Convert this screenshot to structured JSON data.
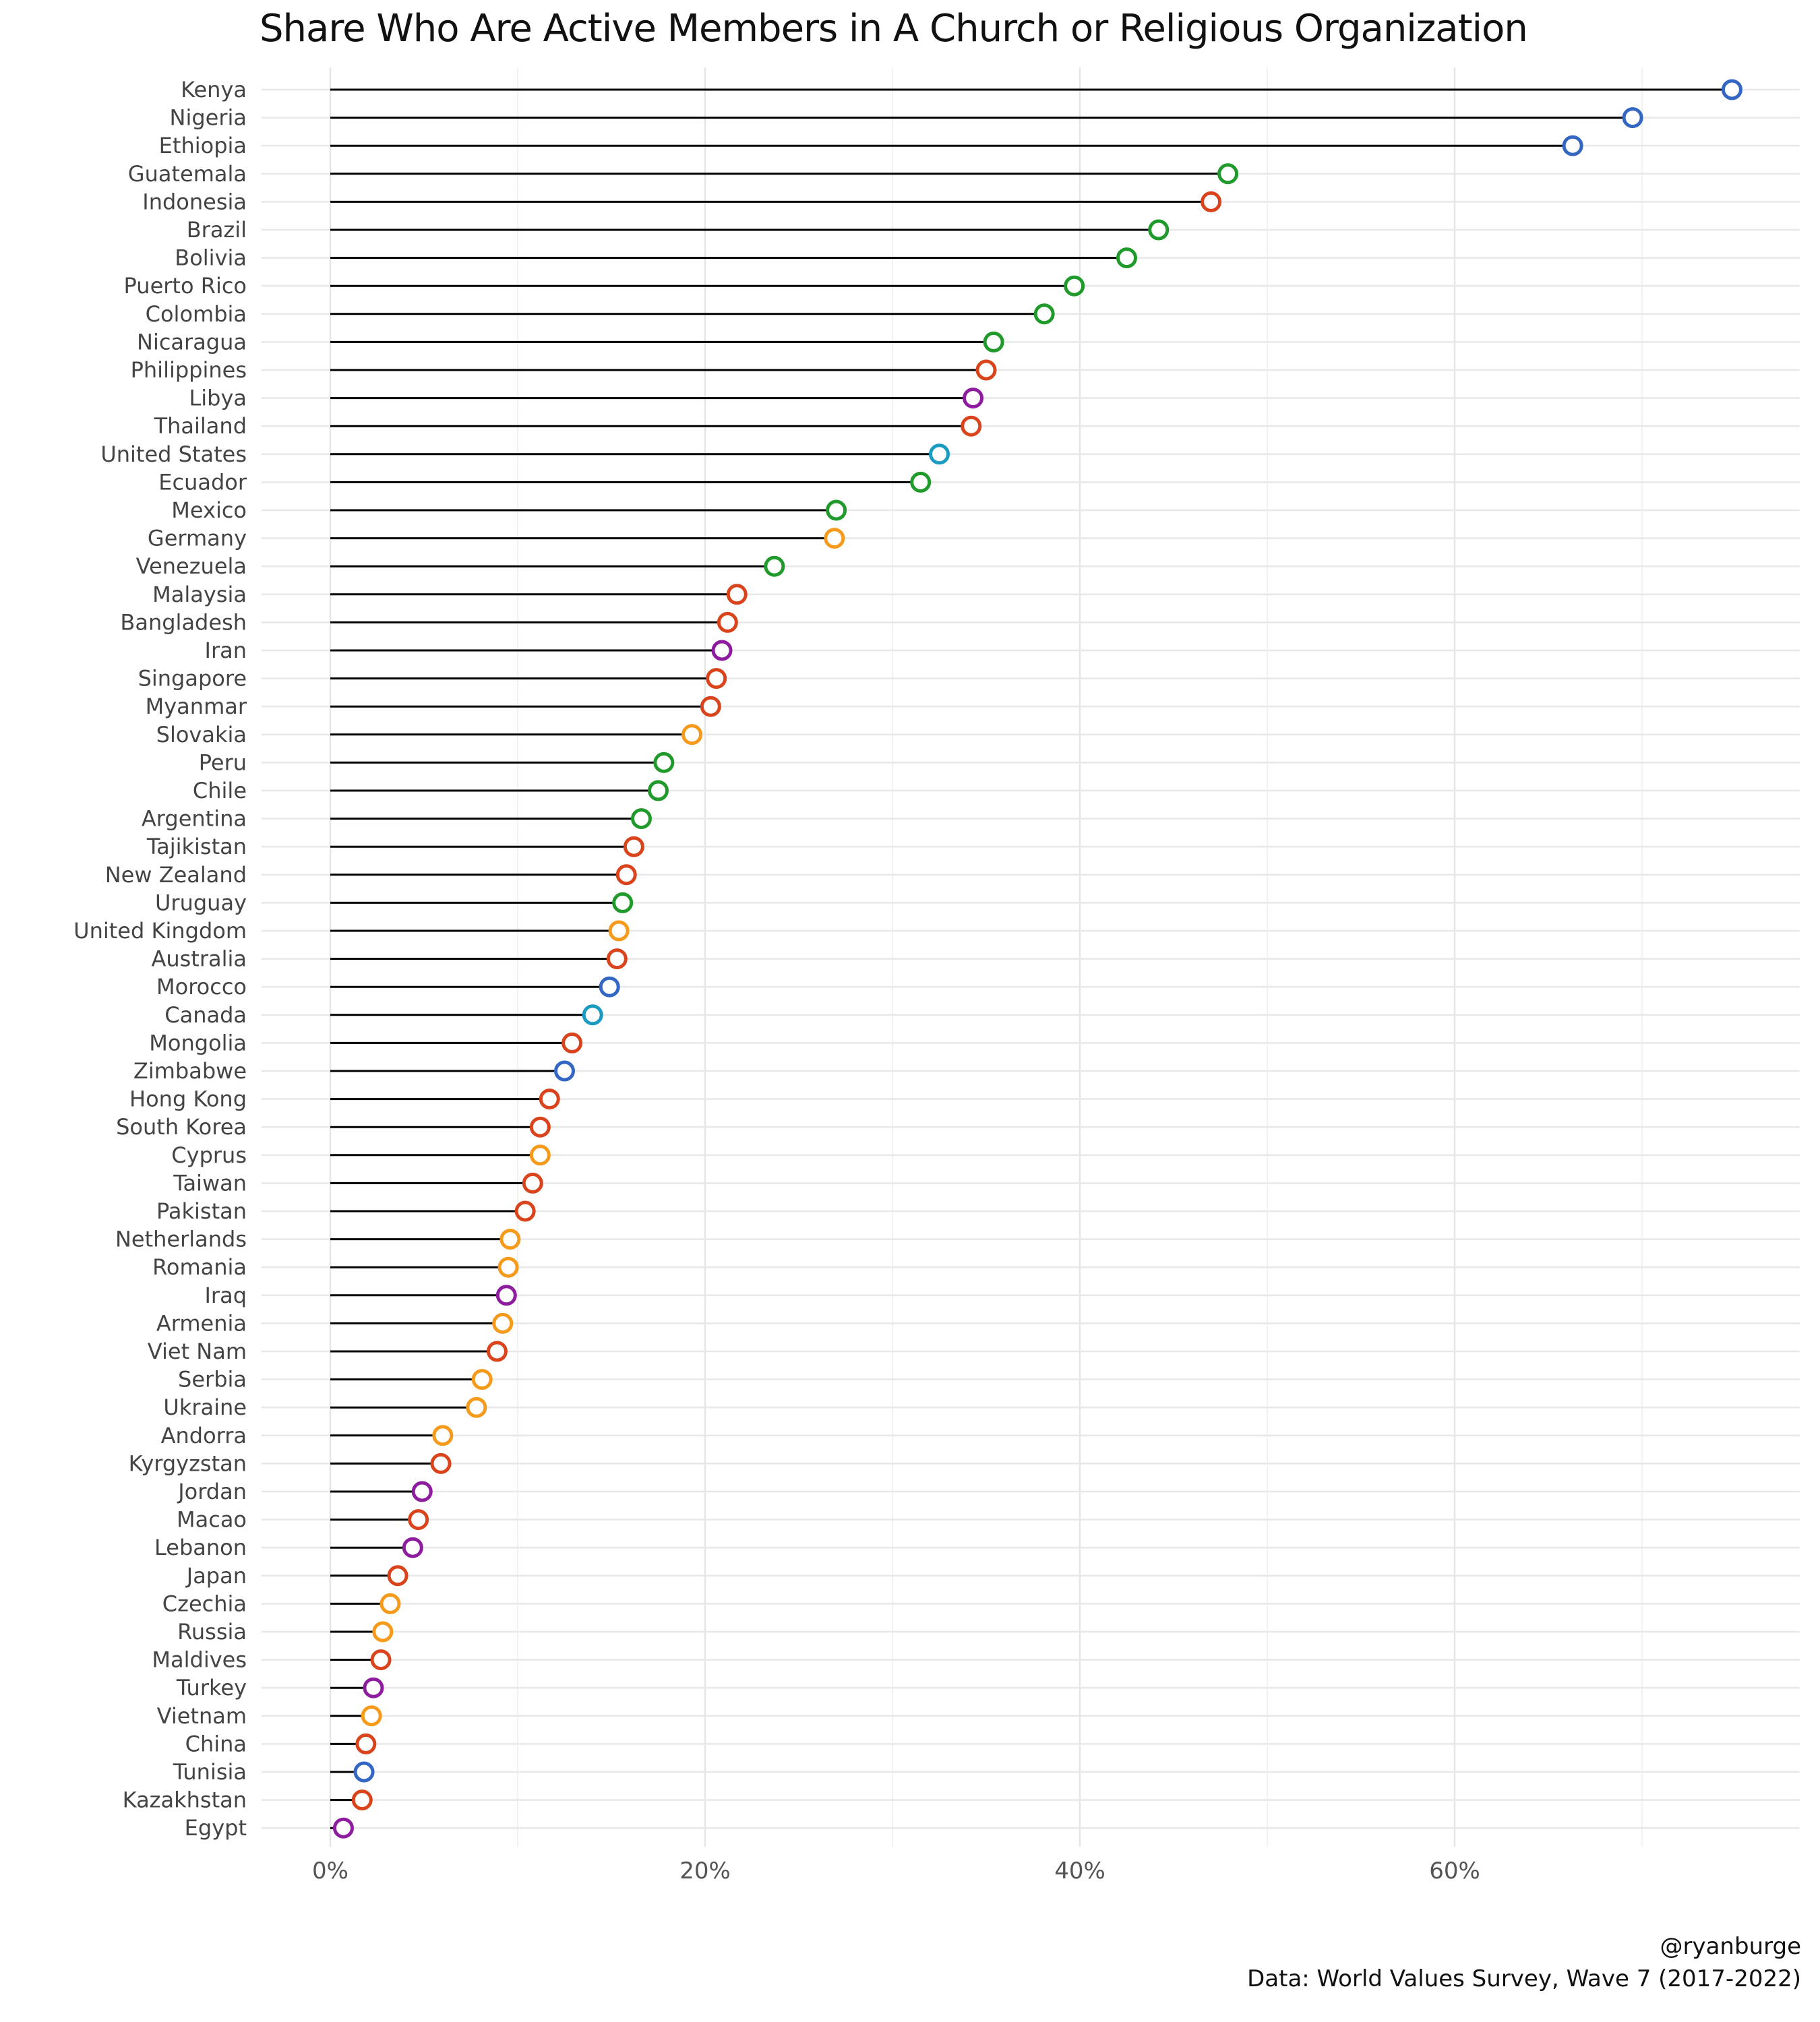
{
  "chart_data": {
    "type": "lollipop",
    "title": "Share Who Are Active Members in A Church or Religious Organization",
    "xlabel": "",
    "ylabel": "",
    "xlim": [
      -0.035,
      0.785
    ],
    "xticks": [
      0,
      0.2,
      0.4,
      0.6
    ],
    "xtick_labels": [
      "0%",
      "20%",
      "40%",
      "60%"
    ],
    "grid": true,
    "legend": "none",
    "categories": [
      "Kenya",
      "Nigeria",
      "Ethiopia",
      "Guatemala",
      "Indonesia",
      "Brazil",
      "Bolivia",
      "Puerto Rico",
      "Colombia",
      "Nicaragua",
      "Philippines",
      "Libya",
      "Thailand",
      "United States",
      "Ecuador",
      "Mexico",
      "Germany",
      "Venezuela",
      "Malaysia",
      "Bangladesh",
      "Iran",
      "Singapore",
      "Myanmar",
      "Slovakia",
      "Peru",
      "Chile",
      "Argentina",
      "Tajikistan",
      "New Zealand",
      "Uruguay",
      "United Kingdom",
      "Australia",
      "Morocco",
      "Canada",
      "Mongolia",
      "Zimbabwe",
      "Hong Kong",
      "South Korea",
      "Cyprus",
      "Taiwan",
      "Pakistan",
      "Netherlands",
      "Romania",
      "Iraq",
      "Armenia",
      "Viet Nam",
      "Serbia",
      "Ukraine",
      "Andorra",
      "Kyrgyzstan",
      "Jordan",
      "Macao",
      "Lebanon",
      "Japan",
      "Czechia",
      "Russia",
      "Maldives",
      "Turkey",
      "Vietnam",
      "China",
      "Tunisia",
      "Kazakhstan",
      "Egypt"
    ],
    "values": [
      0.748,
      0.695,
      0.663,
      0.479,
      0.47,
      0.442,
      0.425,
      0.397,
      0.381,
      0.354,
      0.35,
      0.343,
      0.342,
      0.325,
      0.315,
      0.27,
      0.269,
      0.237,
      0.217,
      0.212,
      0.209,
      0.206,
      0.203,
      0.193,
      0.178,
      0.175,
      0.166,
      0.162,
      0.158,
      0.156,
      0.154,
      0.153,
      0.149,
      0.14,
      0.129,
      0.125,
      0.117,
      0.112,
      0.112,
      0.108,
      0.104,
      0.096,
      0.095,
      0.094,
      0.092,
      0.089,
      0.081,
      0.078,
      0.06,
      0.059,
      0.049,
      0.047,
      0.044,
      0.036,
      0.032,
      0.028,
      0.027,
      0.023,
      0.022,
      0.019,
      0.018,
      0.017,
      0.007
    ],
    "colors": [
      "#3467c4",
      "#3467c4",
      "#3467c4",
      "#1f9a2b",
      "#d9441c",
      "#1f9a2b",
      "#1f9a2b",
      "#1f9a2b",
      "#1f9a2b",
      "#1f9a2b",
      "#d9441c",
      "#8e1c9e",
      "#d9441c",
      "#1b9ac2",
      "#1f9a2b",
      "#1f9a2b",
      "#f59a1a",
      "#1f9a2b",
      "#d9441c",
      "#d9441c",
      "#8e1c9e",
      "#d9441c",
      "#d9441c",
      "#f59a1a",
      "#1f9a2b",
      "#1f9a2b",
      "#1f9a2b",
      "#d9441c",
      "#d9441c",
      "#1f9a2b",
      "#f59a1a",
      "#d9441c",
      "#3467c4",
      "#1b9ac2",
      "#d9441c",
      "#3467c4",
      "#d9441c",
      "#d9441c",
      "#f59a1a",
      "#d9441c",
      "#d9441c",
      "#f59a1a",
      "#f59a1a",
      "#8e1c9e",
      "#f59a1a",
      "#d9441c",
      "#f59a1a",
      "#f59a1a",
      "#f59a1a",
      "#d9441c",
      "#8e1c9e",
      "#d9441c",
      "#8e1c9e",
      "#d9441c",
      "#f59a1a",
      "#f59a1a",
      "#d9441c",
      "#8e1c9e",
      "#f59a1a",
      "#d9441c",
      "#3467c4",
      "#d9441c",
      "#8e1c9e"
    ]
  },
  "caption": {
    "handle": "@ryanburge",
    "source": "Data: World Values Survey, Wave 7 (2017-2022)"
  }
}
